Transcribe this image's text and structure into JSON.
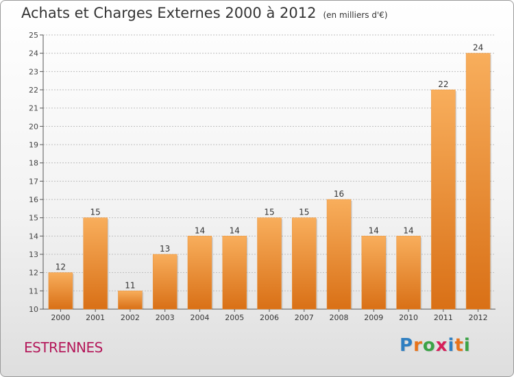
{
  "header": {
    "title": "Achats et Charges Externes 2000 à 2012",
    "subtitle": "(en milliers d'€)"
  },
  "footer": {
    "commune": "ESTRENNES",
    "logo_text": "Proxiti",
    "logo_colors": [
      "#2f7fc1",
      "#e8731a",
      "#3aa346",
      "#d61f5a",
      "#2f7fc1",
      "#e8731a",
      "#3aa346"
    ]
  },
  "colors": {
    "bar_top": "#f8ae5c",
    "bar_bottom": "#d97016",
    "grid": "#bdbdbd",
    "axis": "#555555"
  },
  "chart_data": {
    "type": "bar",
    "title": "Achats et Charges Externes 2000 à 2012",
    "subtitle": "(en milliers d'€)",
    "categories": [
      "2000",
      "2001",
      "2002",
      "2003",
      "2004",
      "2005",
      "2006",
      "2007",
      "2008",
      "2009",
      "2010",
      "2011",
      "2012"
    ],
    "values": [
      12,
      15,
      11,
      13,
      14,
      14,
      15,
      15,
      16,
      14,
      14,
      22,
      24
    ],
    "ylim": [
      10,
      25
    ],
    "yticks": [
      10,
      11,
      12,
      13,
      14,
      15,
      16,
      17,
      18,
      19,
      20,
      21,
      22,
      23,
      24,
      25
    ],
    "grid": true,
    "legend": "none"
  }
}
